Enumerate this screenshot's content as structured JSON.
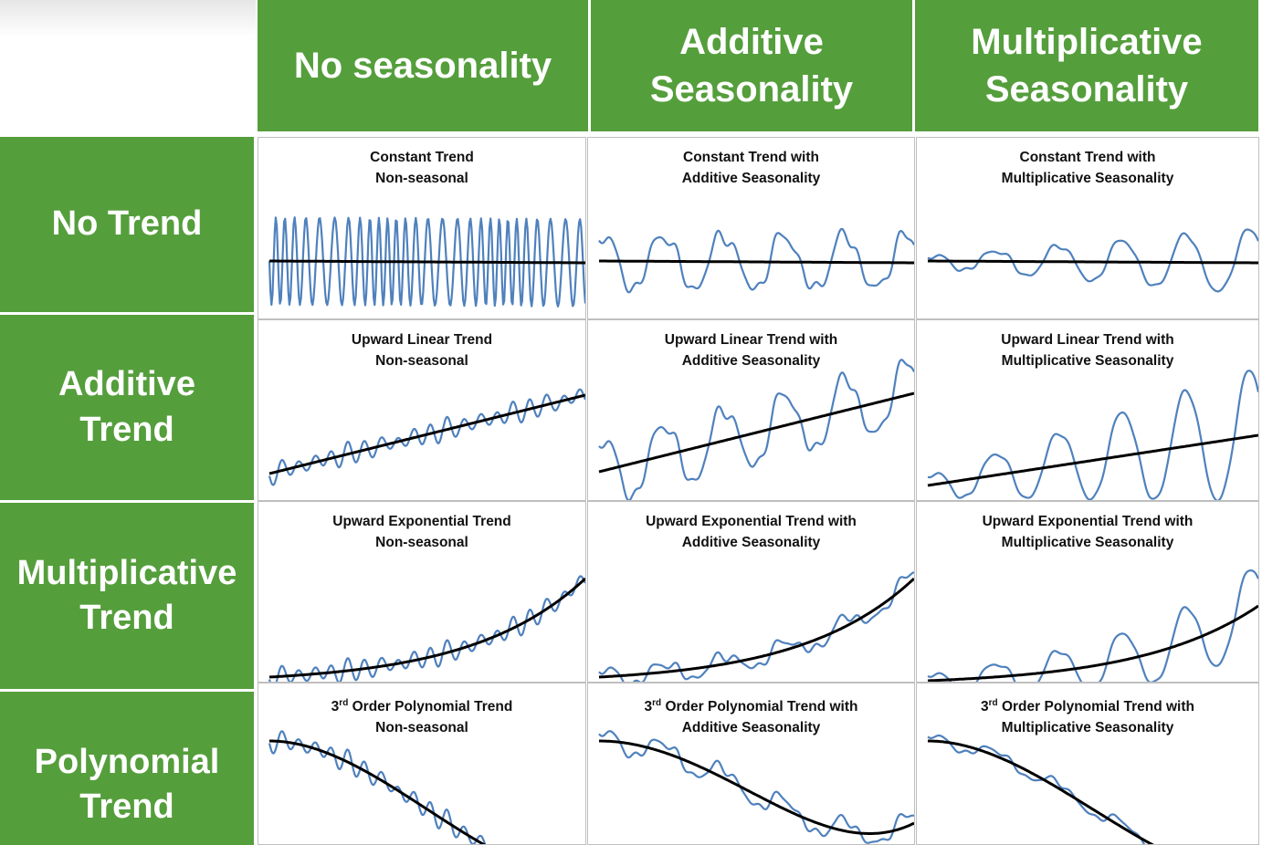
{
  "colors": {
    "header_bg": "#559e3c",
    "header_text": "#ffffff",
    "series": "#4f81bd",
    "trend": "#000000"
  },
  "column_headers": [
    "No seasonality",
    "Additive Seasonality",
    "Multiplicative Seasonality"
  ],
  "row_headers": [
    "No Trend",
    "Additive Trend",
    "Multiplicative Trend",
    "Polynomial Trend"
  ],
  "chart_data": [
    {
      "type": "line",
      "trend": "constant",
      "seasonality": "none",
      "title_line1": "Constant Trend",
      "title_line2": "Non-seasonal"
    },
    {
      "type": "line",
      "trend": "constant",
      "seasonality": "additive",
      "title_line1": "Constant Trend with",
      "title_line2": "Additive Seasonality"
    },
    {
      "type": "line",
      "trend": "constant",
      "seasonality": "multiplicative",
      "title_line1": "Constant Trend with",
      "title_line2": "Multiplicative Seasonality"
    },
    {
      "type": "line",
      "trend": "linear",
      "seasonality": "none",
      "title_line1": "Upward Linear Trend",
      "title_line2": "Non-seasonal"
    },
    {
      "type": "line",
      "trend": "linear",
      "seasonality": "additive",
      "title_line1": "Upward Linear Trend with",
      "title_line2": "Additive Seasonality"
    },
    {
      "type": "line",
      "trend": "linear",
      "seasonality": "multiplicative",
      "title_line1": "Upward Linear Trend with",
      "title_line2": "Multiplicative Seasonality"
    },
    {
      "type": "line",
      "trend": "exponential",
      "seasonality": "none",
      "title_line1": "Upward Exponential Trend",
      "title_line2": "Non-seasonal"
    },
    {
      "type": "line",
      "trend": "exponential",
      "seasonality": "additive",
      "title_line1": "Upward Exponential Trend with",
      "title_line2": "Additive Seasonality"
    },
    {
      "type": "line",
      "trend": "exponential",
      "seasonality": "multiplicative",
      "title_line1": "Upward Exponential Trend with",
      "title_line2": "Multiplicative Seasonality"
    },
    {
      "type": "line",
      "trend": "polynomial",
      "seasonality": "none",
      "title_sup": "rd",
      "title_line1": "3",
      "title_line1b": " Order Polynomial Trend",
      "title_line2": "Non-seasonal"
    },
    {
      "type": "line",
      "trend": "polynomial",
      "seasonality": "additive",
      "title_sup": "rd",
      "title_line1": "3",
      "title_line1b": " Order Polynomial Trend with",
      "title_line2": "Additive Seasonality"
    },
    {
      "type": "line",
      "trend": "polynomial",
      "seasonality": "multiplicative",
      "title_sup": "rd",
      "title_line1": "3",
      "title_line1b": " Order Polynomial Trend with",
      "title_line2": "Multiplicative Seasonality"
    }
  ]
}
